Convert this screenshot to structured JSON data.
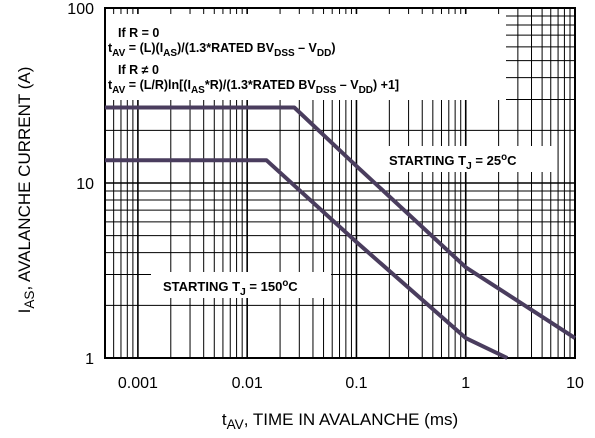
{
  "chart_data": {
    "type": "line",
    "xscale": "log",
    "yscale": "log",
    "xlim": [
      0.0005,
      10
    ],
    "ylim": [
      1,
      100
    ],
    "grid": true,
    "xlabel": {
      "main": "t",
      "sub": "AV",
      "rest": ", TIME IN AVALANCHE (ms)"
    },
    "ylabel": {
      "main": "I",
      "sub": "AS",
      "rest": ", AVALANCHE CURRENT (A)"
    },
    "xticks": [
      {
        "value": 0.001,
        "label": "0.001"
      },
      {
        "value": 0.01,
        "label": "0.01"
      },
      {
        "value": 0.1,
        "label": "0.1"
      },
      {
        "value": 1,
        "label": "1"
      },
      {
        "value": 10,
        "label": "10"
      }
    ],
    "yticks": [
      {
        "value": 1,
        "label": "1"
      },
      {
        "value": 10,
        "label": "10"
      },
      {
        "value": 100,
        "label": "100"
      }
    ],
    "series": [
      {
        "key": "tj25",
        "label_parts": [
          "STARTING T",
          "J",
          " = 25",
          "o",
          "C"
        ],
        "color": "#4a3d5e",
        "points": [
          [
            0.0005,
            27
          ],
          [
            0.027,
            27
          ],
          [
            0.1,
            12.5
          ],
          [
            1,
            3.3
          ],
          [
            10,
            1.3
          ]
        ]
      },
      {
        "key": "tj150",
        "label_parts": [
          "STARTING T",
          "J",
          " = 150",
          "o",
          "C"
        ],
        "color": "#4a3d5e",
        "points": [
          [
            0.0005,
            13.5
          ],
          [
            0.015,
            13.5
          ],
          [
            0.1,
            4.6
          ],
          [
            1,
            1.3
          ],
          [
            2.4,
            1
          ]
        ]
      }
    ],
    "annotations": {
      "line1": "If R = 0",
      "line2_parts": [
        "t",
        "AV",
        " = (L)(I",
        "AS",
        ")/(1.3*RATED BV",
        "DSS",
        " – V",
        "DD",
        ")"
      ],
      "line3": "If R ≠ 0",
      "line4_parts": [
        "t",
        "AV",
        " = (L/R)ln[(I",
        "AS",
        "*R)/(1.3*RATED BV",
        "DSS",
        " – V",
        "DD",
        ") +1]"
      ]
    }
  }
}
